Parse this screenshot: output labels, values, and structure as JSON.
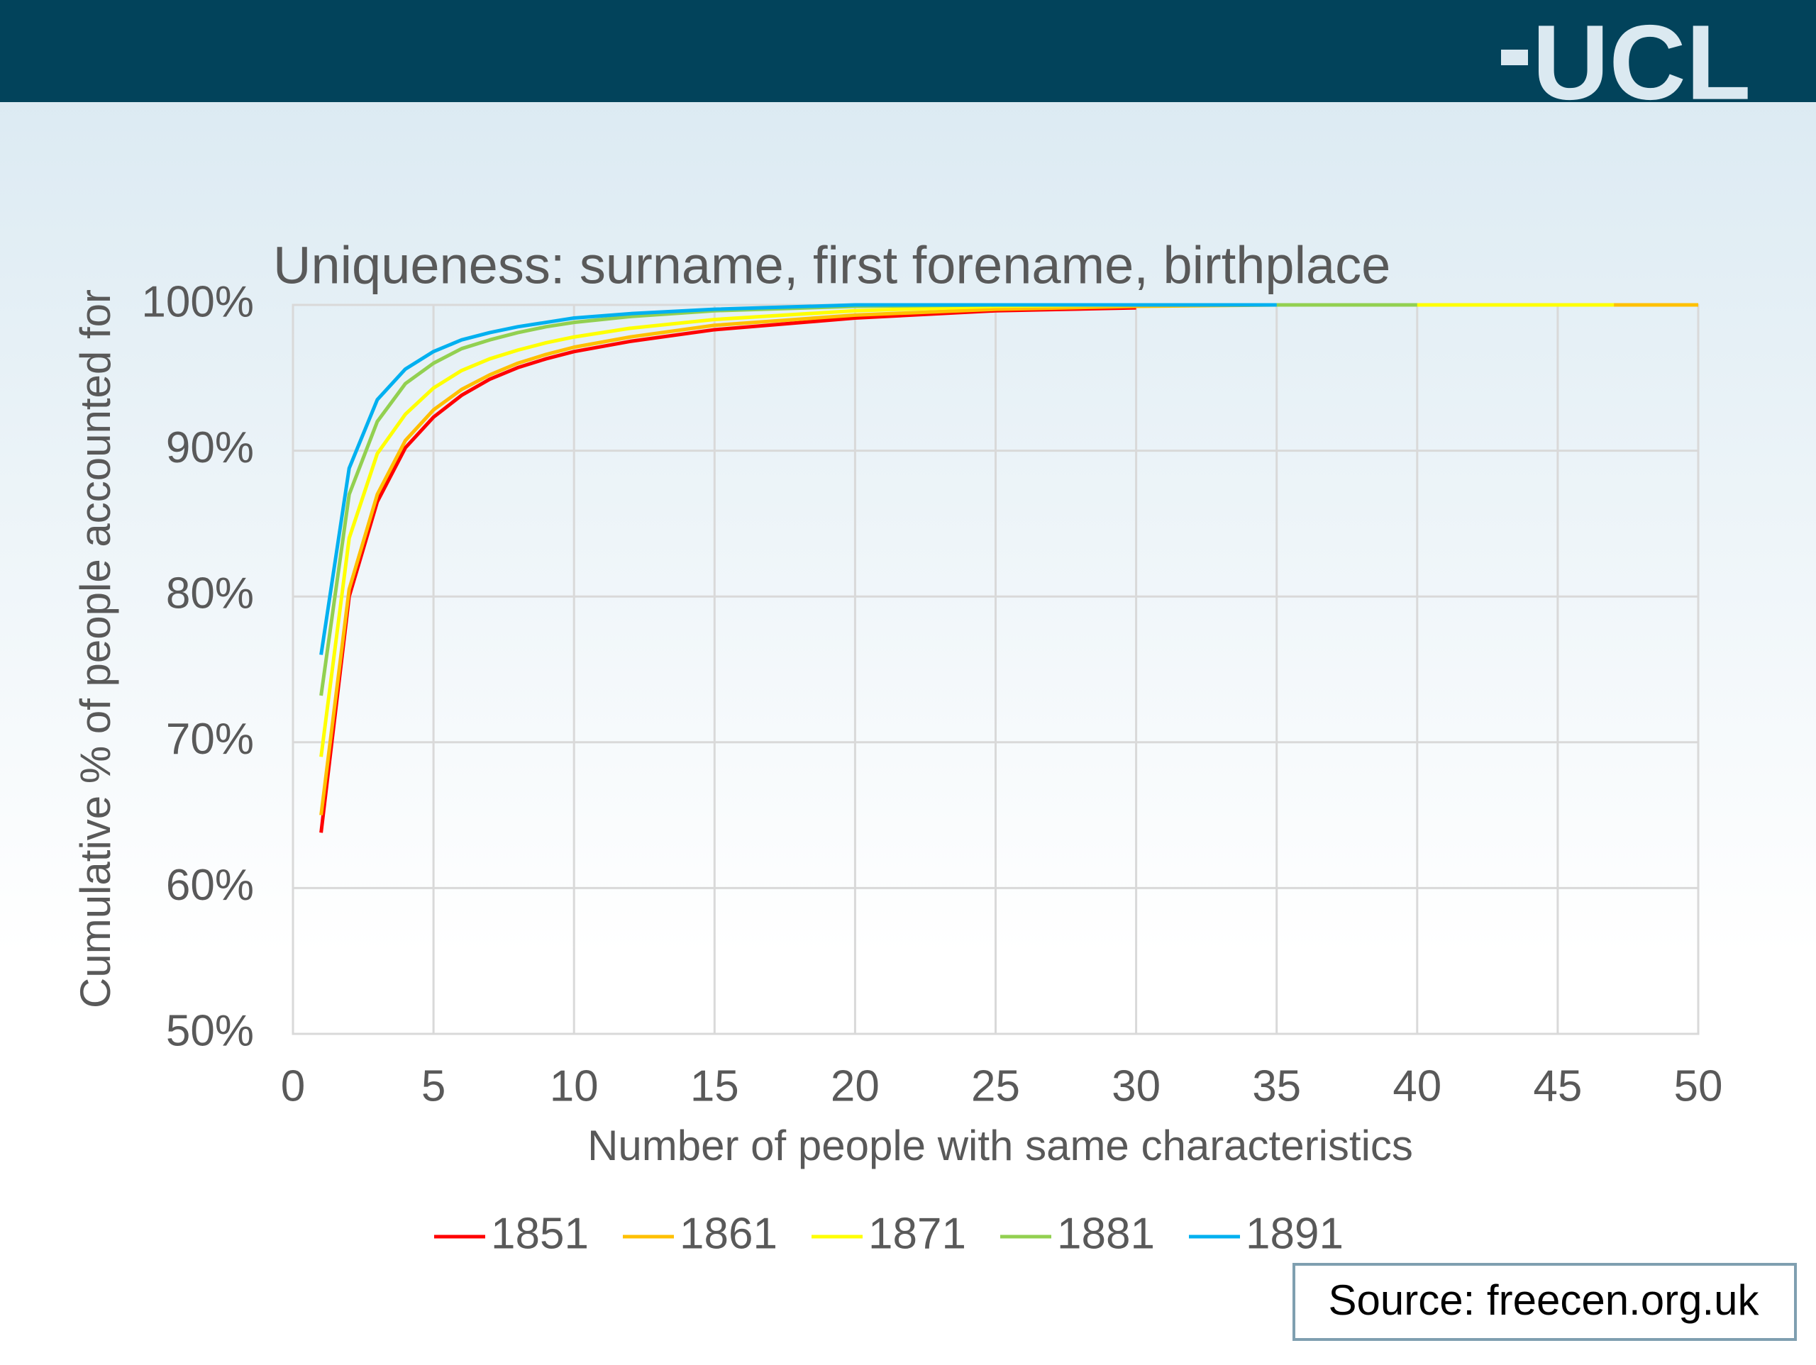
{
  "header": {
    "logo": "UCL"
  },
  "source": "Source: freecen.org.uk",
  "chart_data": {
    "type": "line",
    "title": "Uniqueness: surname, first forename, birthplace",
    "xlabel": "Number of people with same characteristics",
    "ylabel": "Cumulative % of people accounted for",
    "x": [
      1,
      2,
      3,
      4,
      5,
      6,
      7,
      8,
      9,
      10,
      12,
      15,
      20,
      25,
      30,
      35,
      40,
      47,
      50
    ],
    "series": [
      {
        "name": "1851",
        "color": "#ff0000",
        "values": [
          63.8,
          80,
          86.5,
          90.2,
          92.3,
          93.8,
          94.9,
          95.7,
          96.3,
          96.8,
          97.5,
          98.3,
          99.1,
          99.6,
          99.8,
          null,
          null,
          null,
          null
        ]
      },
      {
        "name": "1861",
        "color": "#ffc000",
        "values": [
          65,
          80.5,
          87,
          90.7,
          92.8,
          94.2,
          95.2,
          96,
          96.6,
          97.1,
          97.8,
          98.6,
          99.3,
          99.7,
          99.9,
          100,
          100,
          100,
          100
        ]
      },
      {
        "name": "1871",
        "color": "#ffff00",
        "values": [
          69,
          84,
          89.8,
          92.5,
          94.3,
          95.5,
          96.3,
          96.9,
          97.4,
          97.8,
          98.4,
          99,
          99.6,
          99.9,
          100,
          100,
          100,
          100,
          null
        ]
      },
      {
        "name": "1881",
        "color": "#92d050",
        "values": [
          73.2,
          87,
          92,
          94.6,
          96,
          97,
          97.6,
          98.1,
          98.5,
          98.8,
          99.2,
          99.6,
          99.9,
          100,
          100,
          100,
          100,
          null,
          null
        ]
      },
      {
        "name": "1891",
        "color": "#00b0f0",
        "values": [
          76,
          88.8,
          93.5,
          95.6,
          96.8,
          97.6,
          98.1,
          98.5,
          98.8,
          99.1,
          99.4,
          99.7,
          100,
          100,
          100,
          100,
          null,
          null,
          null
        ]
      }
    ],
    "xlim": [
      0,
      50
    ],
    "xticks": [
      0,
      5,
      10,
      15,
      20,
      25,
      30,
      35,
      40,
      45,
      50
    ],
    "ylim": [
      50,
      100
    ],
    "yticks": [
      {
        "value": 50,
        "label": "50%"
      },
      {
        "value": 60,
        "label": "60%"
      },
      {
        "value": 70,
        "label": "70%"
      },
      {
        "value": 80,
        "label": "80%"
      },
      {
        "value": 90,
        "label": "90%"
      },
      {
        "value": 100,
        "label": "100%"
      }
    ],
    "grid": true,
    "legend": "bottom"
  }
}
